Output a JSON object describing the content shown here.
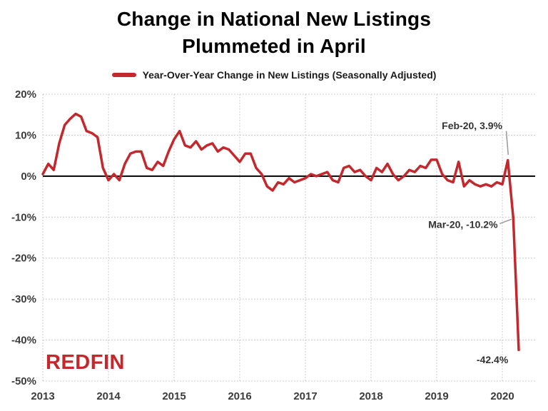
{
  "title": {
    "line1": "Change in National New Listings",
    "line2": "Plummeted in April"
  },
  "legend": {
    "label": "Year-Over-Year Change in New Listings (Seasonally Adjusted)",
    "swatch_color": "#c4272c"
  },
  "logo": {
    "text": "REDFIN",
    "color": "#c4272c"
  },
  "chart_data": {
    "type": "line",
    "title": "Change in National New Listings Plummeted in April",
    "series_name": "Year-Over-Year Change in New Listings (Seasonally Adjusted)",
    "line_color": "#c4272c",
    "zero_line_color": "#000000",
    "grid": true,
    "grid_color": "#cccccc",
    "xlim": [
      2013,
      2020.5
    ],
    "ylim": [
      -50,
      20
    ],
    "x_ticks": [
      2013,
      2014,
      2015,
      2016,
      2017,
      2018,
      2019,
      2020
    ],
    "x_tick_labels": [
      "2013",
      "2014",
      "2015",
      "2016",
      "2017",
      "2018",
      "2019",
      "2020"
    ],
    "y_ticks": [
      20,
      10,
      0,
      -10,
      -20,
      -30,
      -40,
      -50
    ],
    "y_tick_labels": [
      "20%",
      "10%",
      "0%",
      "-10%",
      "-20%",
      "-30%",
      "-40%",
      "-50%"
    ],
    "x_start_year": 2013,
    "x_frequency": "monthly",
    "values": [
      0.5,
      3,
      1.5,
      8,
      12.5,
      14,
      15.2,
      14.5,
      11,
      10.5,
      9.5,
      2,
      -1,
      0.5,
      -1,
      3,
      5.5,
      6,
      6,
      2,
      1.5,
      3.5,
      2.5,
      6,
      9,
      11,
      7.5,
      7,
      8.5,
      6.5,
      7.5,
      8,
      6,
      7,
      6.5,
      5,
      3.5,
      5.5,
      5.5,
      2,
      0.5,
      -2.5,
      -3.5,
      -1.5,
      -2,
      -0.5,
      -1.5,
      -1,
      -0.5,
      0.5,
      0,
      0.5,
      1,
      -1,
      -1.5,
      2,
      2.5,
      1,
      1.5,
      0,
      -1,
      2,
      1,
      3,
      0.5,
      -1,
      0,
      1.5,
      1,
      2.5,
      2,
      4,
      4,
      0.5,
      -1,
      -1.5,
      3.5,
      -2.5,
      -1,
      -2,
      -2.5,
      -2,
      -2.5,
      -1.5,
      -2,
      3.9,
      -10.2,
      -42.4
    ],
    "annotations": [
      {
        "label": "Feb-20, 3.9%",
        "point_x": 2020.083,
        "point_y": 3.9,
        "text_x": 2020.0,
        "text_y": 12.3,
        "connector": [
          2020.06,
          11.0,
          2020.09,
          5.2
        ]
      },
      {
        "label": "Mar-20, -10.2%",
        "point_x": 2020.167,
        "point_y": -10.2,
        "text_x": 2019.93,
        "text_y": -11.8,
        "connector": [
          2019.96,
          -11.6,
          2020.14,
          -10.5
        ]
      },
      {
        "label": "-42.4%",
        "point_x": 2020.25,
        "point_y": -42.4,
        "text_x": 2020.09,
        "text_y": -44.8,
        "connector": null
      }
    ]
  }
}
